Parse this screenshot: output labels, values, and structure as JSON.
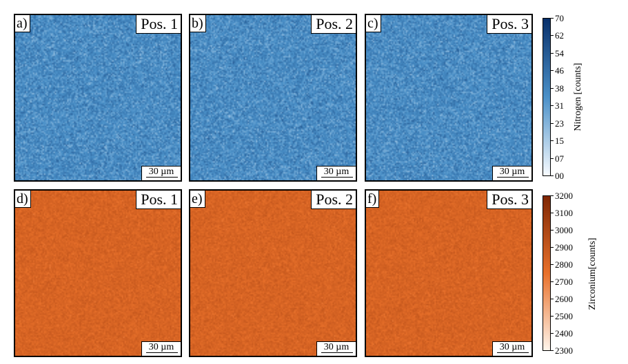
{
  "colors": {
    "nitrogen_low": "#f7fbff",
    "nitrogen_mid": "#4a90c8",
    "nitrogen_high": "#08306b",
    "zirconium_low": "#fff5eb",
    "zirconium_mid": "#e8702a",
    "zirconium_high": "#7f2704"
  },
  "panels": [
    {
      "letter": "a)",
      "position": "Pos. 1",
      "scalebar": "30 µm",
      "map": "nitrogen"
    },
    {
      "letter": "b)",
      "position": "Pos. 2",
      "scalebar": "30 µm",
      "map": "nitrogen"
    },
    {
      "letter": "c)",
      "position": "Pos. 3",
      "scalebar": "30 µm",
      "map": "nitrogen"
    },
    {
      "letter": "d)",
      "position": "Pos. 1",
      "scalebar": "30 µm",
      "map": "zirconium"
    },
    {
      "letter": "e)",
      "position": "Pos. 2",
      "scalebar": "30 µm",
      "map": "zirconium"
    },
    {
      "letter": "f)",
      "position": "Pos. 3",
      "scalebar": "30 µm",
      "map": "zirconium"
    }
  ],
  "colorbars": {
    "nitrogen": {
      "label": "Nitrogen [counts]",
      "ticks": [
        "70",
        "62",
        "54",
        "46",
        "38",
        "31",
        "23",
        "15",
        "07",
        "00"
      ]
    },
    "zirconium": {
      "label": "Zirconium[counts]",
      "ticks": [
        "3200",
        "3100",
        "3000",
        "2900",
        "2800",
        "2700",
        "2600",
        "2500",
        "2400",
        "2300"
      ]
    }
  }
}
